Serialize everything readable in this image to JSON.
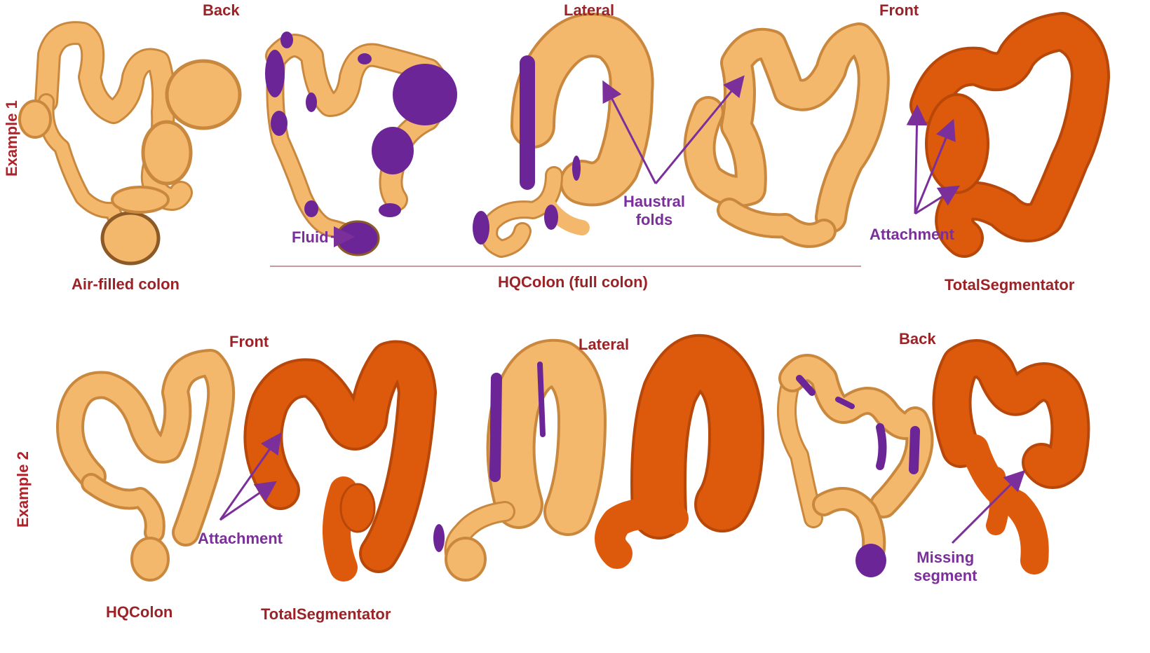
{
  "colors": {
    "colon_tan": "#f4b86c",
    "colon_shadow": "#c9883e",
    "fluid_purple": "#6b2596",
    "totalseg_orange": "#dd5a0c",
    "label_red": "#9b2226",
    "annotation_purple": "#7b2f9a"
  },
  "example1": {
    "side_label": "Example 1",
    "view_back": "Back",
    "view_lateral": "Lateral",
    "view_front": "Front",
    "caption_air": "Air-filled colon",
    "caption_hq": "HQColon (full colon)",
    "caption_ts": "TotalSegmentator",
    "ann_fluid": "Fluid",
    "ann_haustral_1": "Haustral",
    "ann_haustral_2": "folds",
    "ann_attachment": "Attachment"
  },
  "example2": {
    "side_label": "Example 2",
    "view_front": "Front",
    "view_lateral": "Lateral",
    "view_back": "Back",
    "caption_hq": "HQColon",
    "caption_ts": "TotalSegmentator",
    "ann_attachment": "Attachment",
    "ann_missing_1": "Missing",
    "ann_missing_2": "segment"
  }
}
